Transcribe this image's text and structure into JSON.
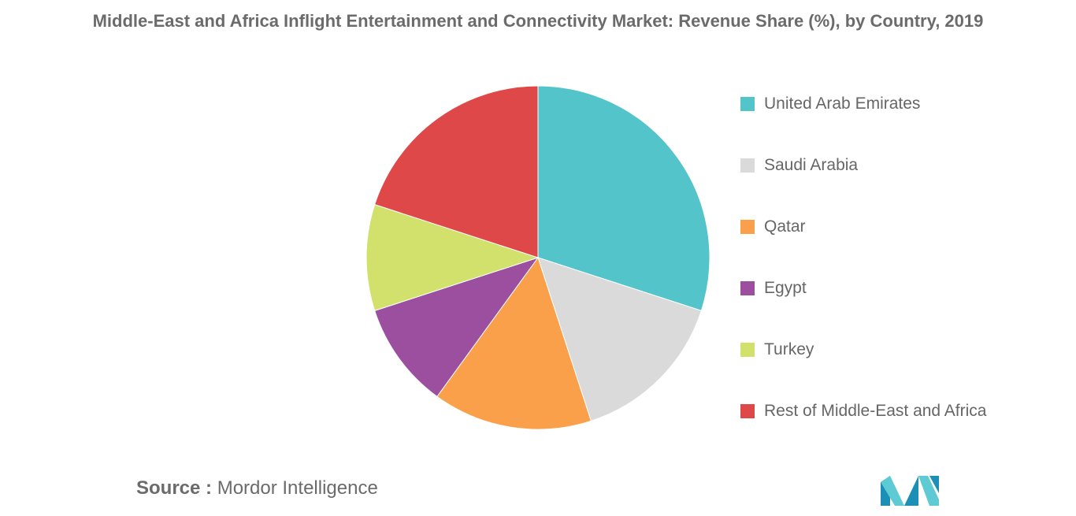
{
  "title": "Middle-East and Africa Inflight Entertainment and Connectivity Market: Revenue Share (%), by Country, 2019",
  "source": {
    "prefix": "Source :",
    "text": "Mordor Intelligence"
  },
  "logo": {
    "icon": "mordor-intelligence-logo",
    "colors": [
      "#1b8fb5",
      "#5ecad3"
    ]
  },
  "chart_data": {
    "type": "pie",
    "title": "Middle-East and Africa Inflight Entertainment and Connectivity Market: Revenue Share (%), by Country, 2019",
    "start_angle": "12 o'clock",
    "direction": "clockwise",
    "legend_position": "right",
    "slices": [
      {
        "label": "United Arab Emirates",
        "value": 30,
        "color": "#52c4ca"
      },
      {
        "label": "Saudi Arabia",
        "value": 15,
        "color": "#dadada"
      },
      {
        "label": "Qatar",
        "value": 15,
        "color": "#fba04a"
      },
      {
        "label": "Egypt",
        "value": 10,
        "color": "#9c4f9f"
      },
      {
        "label": "Turkey",
        "value": 10,
        "color": "#d2e06c"
      },
      {
        "label": "Rest of Middle-East and Africa",
        "value": 20,
        "color": "#df4848"
      }
    ]
  }
}
